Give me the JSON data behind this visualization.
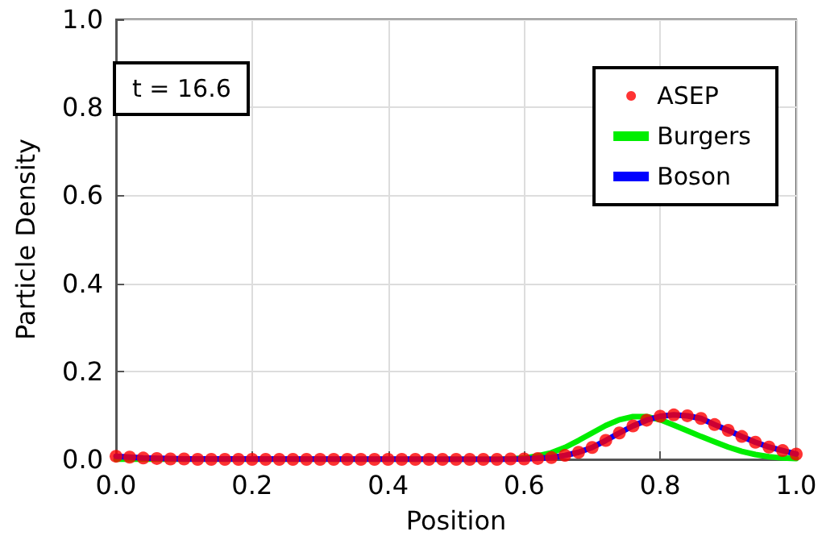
{
  "chart_data": {
    "type": "line",
    "xlabel": "Position",
    "ylabel": "Particle Density",
    "annotations": [
      "t = 16.6"
    ],
    "xlim": [
      0,
      1
    ],
    "xticks": [
      {
        "value": 0,
        "label": "0.0"
      },
      0.2,
      0.4,
      0.6,
      0.8,
      {
        "value": 1,
        "label": "1.0"
      }
    ],
    "ylim": [
      0,
      1
    ],
    "yticks": [
      {
        "value": 0,
        "label": "0.0"
      },
      0.2,
      0.4,
      0.6,
      0.8,
      {
        "value": 1,
        "label": "1.0"
      }
    ],
    "grid": true,
    "legend": "top right",
    "series": [
      {
        "name": "ASEP",
        "type": "scatter",
        "marker": "circle",
        "color": "#ff0000",
        "x": [
          0,
          0.02,
          0.04,
          0.06,
          0.08,
          0.1,
          0.12,
          0.14,
          0.16,
          0.18,
          0.2,
          0.22,
          0.24,
          0.26,
          0.28,
          0.3,
          0.32,
          0.34,
          0.36,
          0.38,
          0.4,
          0.42,
          0.44,
          0.46,
          0.48,
          0.5,
          0.52,
          0.54,
          0.56,
          0.58,
          0.6,
          0.62,
          0.64,
          0.66,
          0.68,
          0.7,
          0.72,
          0.74,
          0.76,
          0.78,
          0.8,
          0.82,
          0.84,
          0.86,
          0.88,
          0.9,
          0.92,
          0.94,
          0.96,
          0.98,
          1
        ],
        "values": [
          0.007,
          0.005,
          0.003,
          0.002,
          0.001,
          0.001,
          0,
          0,
          0,
          0,
          0,
          0,
          0,
          0,
          0,
          0,
          0,
          0,
          0,
          0,
          0,
          0,
          0,
          0,
          0,
          0,
          0,
          0,
          0,
          0.001,
          0.001,
          0.002,
          0.004,
          0.009,
          0.016,
          0.027,
          0.043,
          0.06,
          0.076,
          0.089,
          0.098,
          0.101,
          0.099,
          0.093,
          0.079,
          0.066,
          0.052,
          0.039,
          0.028,
          0.02,
          0.012
        ]
      },
      {
        "name": "Burgers",
        "type": "line",
        "color": "#00ee00",
        "x": [
          0,
          0.56,
          0.58,
          0.6,
          0.62,
          0.64,
          0.66,
          0.68,
          0.7,
          0.72,
          0.74,
          0.76,
          0.78,
          0.8,
          0.82,
          0.84,
          0.86,
          0.88,
          0.9,
          0.92,
          0.94,
          0.96,
          0.98,
          1
        ],
        "values": [
          0,
          0,
          0.001,
          0.003,
          0.008,
          0.015,
          0.027,
          0.043,
          0.06,
          0.077,
          0.09,
          0.097,
          0.097,
          0.09,
          0.078,
          0.065,
          0.052,
          0.04,
          0.028,
          0.018,
          0.011,
          0.006,
          0.003,
          0.002
        ]
      },
      {
        "name": "Boson",
        "type": "line",
        "color": "#0000ff",
        "x": [
          0,
          0.04,
          0.1,
          0.56,
          0.6,
          0.64,
          0.66,
          0.68,
          0.7,
          0.72,
          0.74,
          0.76,
          0.78,
          0.8,
          0.82,
          0.84,
          0.86,
          0.88,
          0.9,
          0.92,
          0.94,
          0.96,
          0.98,
          1
        ],
        "values": [
          0.007,
          0.003,
          0.001,
          0,
          0.001,
          0.004,
          0.009,
          0.016,
          0.027,
          0.043,
          0.06,
          0.076,
          0.089,
          0.098,
          0.101,
          0.099,
          0.093,
          0.079,
          0.066,
          0.052,
          0.039,
          0.028,
          0.02,
          0.012
        ]
      }
    ]
  }
}
